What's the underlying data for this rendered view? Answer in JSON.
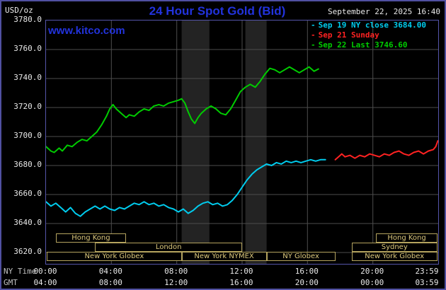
{
  "header": {
    "units_label": "USD/oz",
    "title": "24 Hour Spot Gold (Bid)",
    "datetime": "September 22, 2025 16:40",
    "watermark": "www.kitco.com"
  },
  "legend": [
    {
      "label": "Sep 19 NY close 3684.00",
      "color": "#00ccee"
    },
    {
      "label": "Sep 21 Sunday",
      "color": "#ff2222"
    },
    {
      "label": "Sep 22 Last 3746.60",
      "color": "#00cc00"
    }
  ],
  "axes": {
    "ny_label": "NY Time",
    "gmt_label": "GMT",
    "ny_ticks": [
      "00:00",
      "04:00",
      "08:00",
      "12:00",
      "16:00",
      "20:00",
      "23:59"
    ],
    "gmt_ticks": [
      "04:00",
      "08:00",
      "12:00",
      "16:00",
      "20:00",
      "00:00",
      "03:59"
    ],
    "y_ticks": [
      "3780.0",
      "3760.0",
      "3740.0",
      "3720.0",
      "3700.0",
      "3680.0",
      "3660.0",
      "3640.0",
      "3620.0"
    ]
  },
  "colors": {
    "background": "#000000",
    "frame": "#5555aa",
    "grid": "#4d4d4d",
    "band": "#232323",
    "title_blue": "#2233dd",
    "session_border": "#b5a45f",
    "session_text": "#dcc87c",
    "axis_text": "#e8e8e8"
  },
  "chart_data": {
    "type": "line",
    "title": "24 Hour Spot Gold (Bid)",
    "xlabel": "NY Time",
    "ylabel": "USD/oz",
    "ylim": [
      3620,
      3780
    ],
    "y_tick_step": 20,
    "x_hours_range": [
      0,
      24
    ],
    "x_tick_hours": [
      0,
      4,
      8,
      12,
      16,
      20,
      23.98
    ],
    "grid": true,
    "legend_position": "top-right",
    "key_values": {
      "sep19_ny_close": 3684.0,
      "sep22_last": 3746.6,
      "as_of": "September 22, 2025 16:40"
    },
    "highlight_bands_hours": [
      [
        8.3,
        10.0
      ],
      [
        12.2,
        13.5
      ]
    ],
    "session_bars": [
      {
        "row": 0,
        "start": 0.6,
        "end": 4.9,
        "label": "Hong Kong"
      },
      {
        "row": 0,
        "start": 20.2,
        "end": 23.95,
        "label": "Hong Kong"
      },
      {
        "row": 1,
        "start": 3.0,
        "end": 12.0,
        "label": "London"
      },
      {
        "row": 1,
        "start": 18.7,
        "end": 23.95,
        "label": "Sydney"
      },
      {
        "row": 2,
        "start": 0.05,
        "end": 8.3,
        "label": "New York Globex"
      },
      {
        "row": 2,
        "start": 8.3,
        "end": 13.5,
        "label": "New York NYMEX"
      },
      {
        "row": 2,
        "start": 13.5,
        "end": 17.7,
        "label": "NY Globex"
      },
      {
        "row": 2,
        "start": 18.7,
        "end": 23.95,
        "label": "New York Globex"
      }
    ],
    "series": [
      {
        "name": "Sep 19 NY close",
        "color": "#00ccee",
        "points": [
          [
            0,
            3655
          ],
          [
            0.3,
            3652
          ],
          [
            0.6,
            3654
          ],
          [
            0.9,
            3651
          ],
          [
            1.2,
            3648
          ],
          [
            1.5,
            3651
          ],
          [
            1.8,
            3647
          ],
          [
            2.1,
            3645
          ],
          [
            2.4,
            3648
          ],
          [
            2.7,
            3650
          ],
          [
            3,
            3652
          ],
          [
            3.3,
            3650
          ],
          [
            3.6,
            3652
          ],
          [
            3.9,
            3650
          ],
          [
            4.2,
            3649
          ],
          [
            4.5,
            3651
          ],
          [
            4.8,
            3650
          ],
          [
            5.1,
            3652
          ],
          [
            5.4,
            3654
          ],
          [
            5.7,
            3653
          ],
          [
            6,
            3655
          ],
          [
            6.3,
            3653
          ],
          [
            6.6,
            3654
          ],
          [
            6.9,
            3652
          ],
          [
            7.2,
            3653
          ],
          [
            7.5,
            3651
          ],
          [
            7.8,
            3650
          ],
          [
            8.1,
            3648
          ],
          [
            8.4,
            3650
          ],
          [
            8.7,
            3647
          ],
          [
            9,
            3649
          ],
          [
            9.3,
            3652
          ],
          [
            9.6,
            3654
          ],
          [
            9.9,
            3655
          ],
          [
            10.2,
            3653
          ],
          [
            10.5,
            3654
          ],
          [
            10.8,
            3652
          ],
          [
            11.1,
            3653
          ],
          [
            11.4,
            3656
          ],
          [
            11.7,
            3660
          ],
          [
            12,
            3665
          ],
          [
            12.3,
            3670
          ],
          [
            12.6,
            3674
          ],
          [
            12.9,
            3677
          ],
          [
            13.2,
            3679
          ],
          [
            13.5,
            3681
          ],
          [
            13.8,
            3680
          ],
          [
            14.1,
            3682
          ],
          [
            14.4,
            3681
          ],
          [
            14.7,
            3683
          ],
          [
            15,
            3682
          ],
          [
            15.3,
            3683
          ],
          [
            15.6,
            3682
          ],
          [
            15.9,
            3683
          ],
          [
            16.2,
            3684
          ],
          [
            16.5,
            3683
          ],
          [
            16.8,
            3684
          ],
          [
            17.1,
            3684
          ]
        ]
      },
      {
        "name": "Sep 21 Sunday",
        "color": "#ff2222",
        "points": [
          [
            17.7,
            3684
          ],
          [
            17.9,
            3686
          ],
          [
            18.1,
            3688
          ],
          [
            18.3,
            3686
          ],
          [
            18.6,
            3687
          ],
          [
            18.9,
            3685
          ],
          [
            19.2,
            3687
          ],
          [
            19.5,
            3686
          ],
          [
            19.8,
            3688
          ],
          [
            20.1,
            3687
          ],
          [
            20.4,
            3686
          ],
          [
            20.7,
            3688
          ],
          [
            21,
            3687
          ],
          [
            21.3,
            3689
          ],
          [
            21.6,
            3690
          ],
          [
            21.9,
            3688
          ],
          [
            22.2,
            3687
          ],
          [
            22.5,
            3689
          ],
          [
            22.8,
            3690
          ],
          [
            23.1,
            3688
          ],
          [
            23.4,
            3690
          ],
          [
            23.7,
            3691
          ],
          [
            23.85,
            3693
          ],
          [
            23.98,
            3697
          ]
        ]
      },
      {
        "name": "Sep 22 Last",
        "color": "#00cc00",
        "points": [
          [
            0,
            3693
          ],
          [
            0.3,
            3690
          ],
          [
            0.5,
            3689
          ],
          [
            0.8,
            3692
          ],
          [
            1,
            3690
          ],
          [
            1.3,
            3694
          ],
          [
            1.6,
            3693
          ],
          [
            1.9,
            3696
          ],
          [
            2.2,
            3698
          ],
          [
            2.5,
            3697
          ],
          [
            2.8,
            3700
          ],
          [
            3.1,
            3703
          ],
          [
            3.4,
            3708
          ],
          [
            3.7,
            3714
          ],
          [
            3.9,
            3719
          ],
          [
            4.1,
            3722
          ],
          [
            4.3,
            3719
          ],
          [
            4.6,
            3716
          ],
          [
            4.9,
            3713
          ],
          [
            5.1,
            3715
          ],
          [
            5.4,
            3714
          ],
          [
            5.7,
            3717
          ],
          [
            6,
            3719
          ],
          [
            6.3,
            3718
          ],
          [
            6.6,
            3721
          ],
          [
            6.9,
            3722
          ],
          [
            7.2,
            3721
          ],
          [
            7.5,
            3723
          ],
          [
            7.8,
            3724
          ],
          [
            8.1,
            3725
          ],
          [
            8.3,
            3726
          ],
          [
            8.5,
            3723
          ],
          [
            8.7,
            3717
          ],
          [
            8.9,
            3712
          ],
          [
            9.1,
            3709
          ],
          [
            9.3,
            3713
          ],
          [
            9.5,
            3716
          ],
          [
            9.8,
            3719
          ],
          [
            10.1,
            3721
          ],
          [
            10.4,
            3719
          ],
          [
            10.7,
            3716
          ],
          [
            11,
            3715
          ],
          [
            11.3,
            3719
          ],
          [
            11.6,
            3725
          ],
          [
            11.9,
            3731
          ],
          [
            12.2,
            3734
          ],
          [
            12.5,
            3736
          ],
          [
            12.8,
            3734
          ],
          [
            13.1,
            3738
          ],
          [
            13.4,
            3743
          ],
          [
            13.7,
            3747
          ],
          [
            14,
            3746
          ],
          [
            14.3,
            3744
          ],
          [
            14.6,
            3746
          ],
          [
            14.9,
            3748
          ],
          [
            15.2,
            3746
          ],
          [
            15.5,
            3744
          ],
          [
            15.8,
            3746
          ],
          [
            16.1,
            3748
          ],
          [
            16.4,
            3745
          ],
          [
            16.67,
            3746.6
          ]
        ]
      }
    ]
  }
}
